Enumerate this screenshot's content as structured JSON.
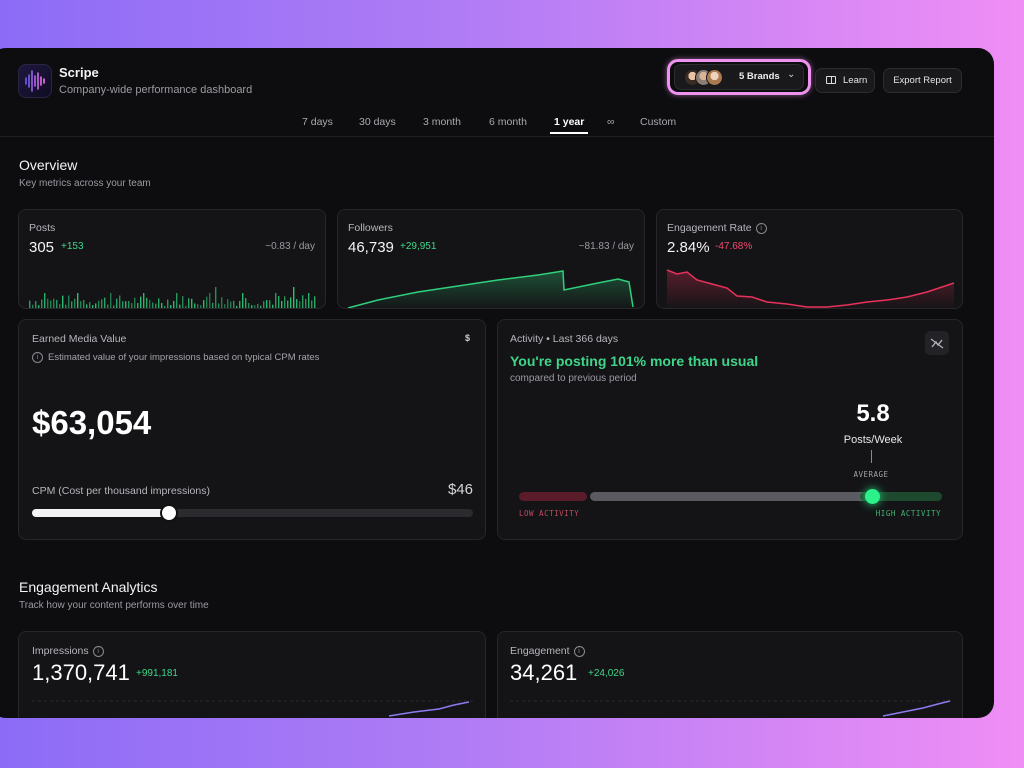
{
  "app": {
    "name": "Scripe",
    "subtitle": "Company-wide performance dashboard"
  },
  "header": {
    "brands_label": "5 Brands",
    "learn_label": "Learn",
    "export_label": "Export Report"
  },
  "tabs": [
    {
      "label": "7 days"
    },
    {
      "label": "30 days"
    },
    {
      "label": "3 month"
    },
    {
      "label": "6 month"
    },
    {
      "label": "1 year",
      "active": true
    },
    {
      "label": "∞"
    },
    {
      "label": "Custom"
    }
  ],
  "overview": {
    "title": "Overview",
    "subtitle": "Key metrics across your team",
    "posts": {
      "label": "Posts",
      "value": "305",
      "delta": "+153",
      "rate": "~0.83 / day"
    },
    "followers": {
      "label": "Followers",
      "value": "46,739",
      "delta": "+29,951",
      "rate": "~81.83 / day"
    },
    "engagement_rate": {
      "label": "Engagement Rate",
      "value": "2.84%",
      "delta": "-47.68%"
    },
    "emv": {
      "label": "Earned Media Value",
      "currency_symbol": "$",
      "info": "Estimated value of your impressions based on typical CPM rates",
      "value": "$63,054",
      "cpm_label": "CPM (Cost per thousand impressions)",
      "cpm_value": "$46",
      "cpm_slider_fraction": 0.31
    },
    "activity": {
      "label": "Activity • Last 366 days",
      "headline": "You're posting 101% more than usual",
      "subline": "compared to previous period",
      "rate_value": "5.8",
      "rate_unit": "Posts/Week",
      "average_label": "AVERAGE",
      "low_label": "LOW ACTIVITY",
      "high_label": "HIGH ACTIVITY",
      "gauge_fraction": 0.835
    }
  },
  "engagement_analytics": {
    "title": "Engagement Analytics",
    "subtitle": "Track how your content performs over time",
    "impressions": {
      "label": "Impressions",
      "value": "1,370,741",
      "delta": "+991,181"
    },
    "engagement": {
      "label": "Engagement",
      "value": "34,261",
      "delta": "+24,026"
    }
  },
  "colors": {
    "positive": "#3fd58a",
    "negative": "#f04a6d",
    "accent_purple": "#8a7cf0",
    "highlight_ring": "#ee92ef"
  }
}
